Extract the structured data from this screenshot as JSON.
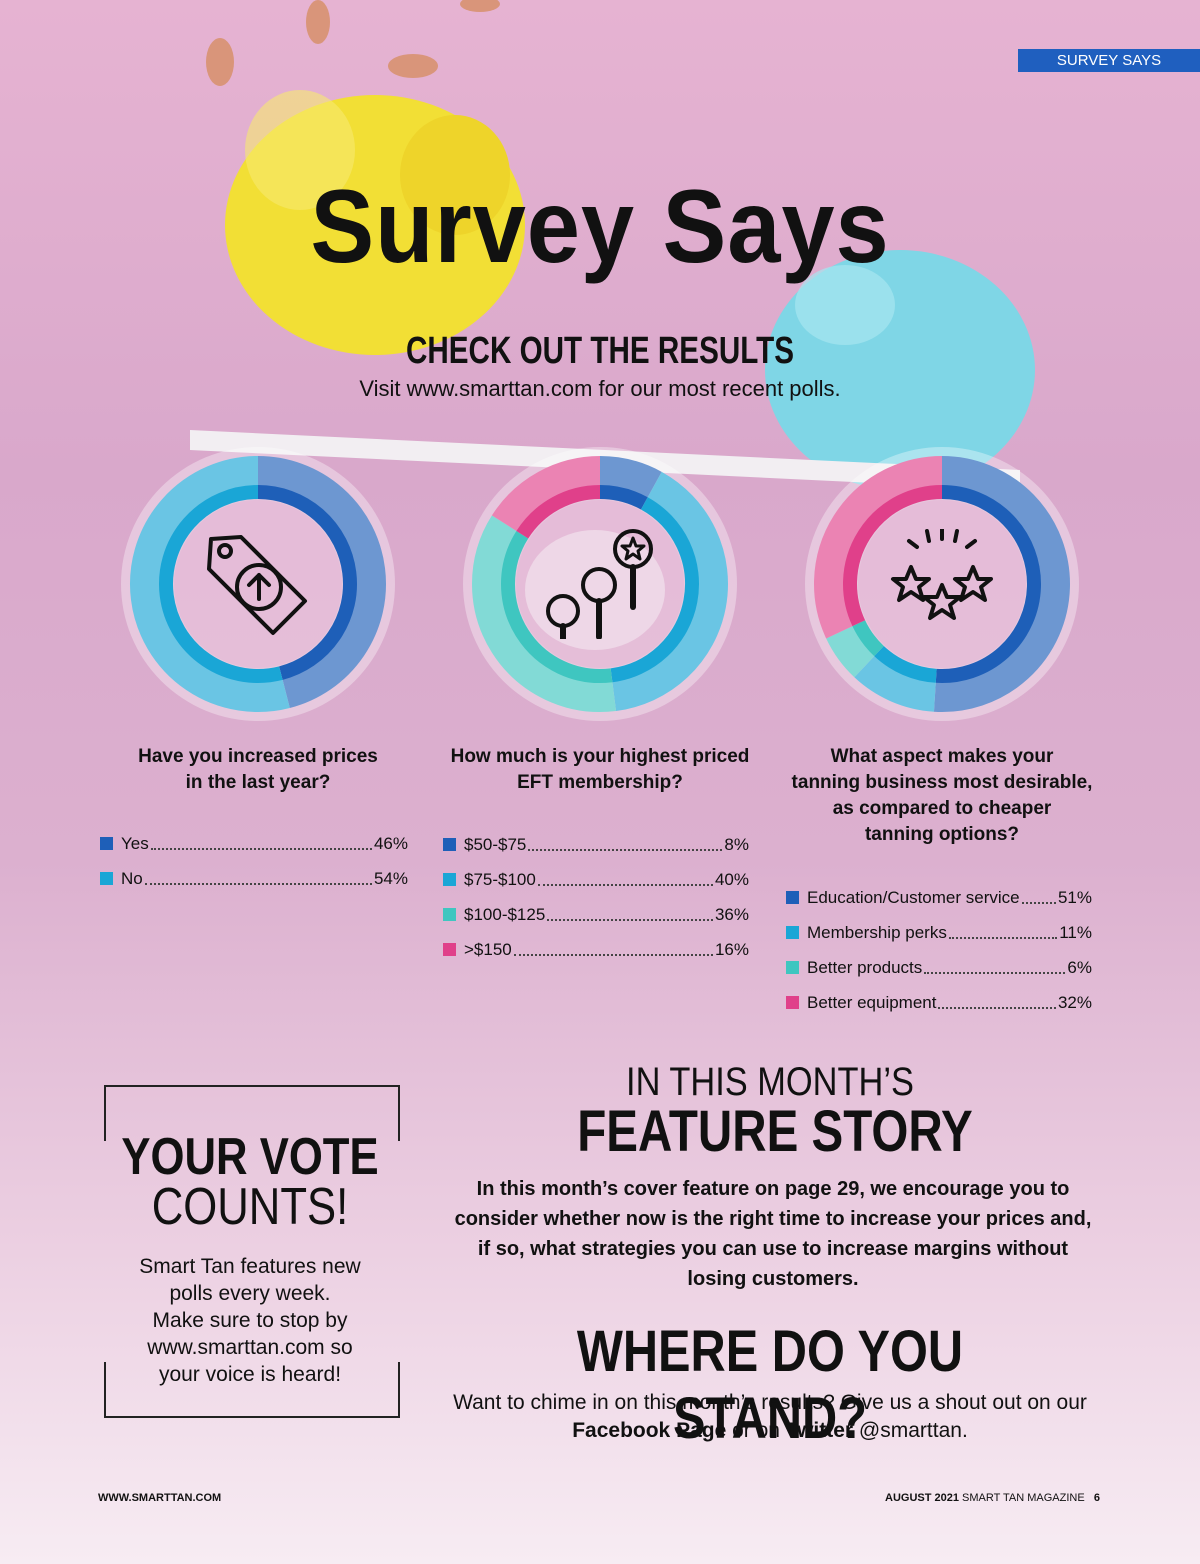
{
  "header": {
    "section_tag": "SURVEY SAYS"
  },
  "hero": {
    "title": "Survey Says",
    "subtitle": "CHECK OUT THE RESULTS",
    "subline": "Visit www.smarttan.com for our most recent polls."
  },
  "chart_data": [
    {
      "type": "pie",
      "title": "Have you increased prices in the last year?",
      "categories": [
        "Yes",
        "No"
      ],
      "values": [
        46,
        54
      ],
      "value_labels": [
        "46%",
        "54%"
      ],
      "colors": [
        "#1e5fb8",
        "#1aa6d6"
      ],
      "icon": "price-tag-up-arrow-icon"
    },
    {
      "type": "pie",
      "title": "How much is your highest priced EFT membership?",
      "categories": [
        "$50-$75",
        "$75-$100",
        "$100-$125",
        ">$150"
      ],
      "values": [
        8,
        40,
        36,
        16
      ],
      "value_labels": [
        "8%",
        "40%",
        "36%",
        "16%"
      ],
      "colors": [
        "#1e5fb8",
        "#1aa6d6",
        "#3fc6c0",
        "#e0408a"
      ],
      "icon": "price-levels-balloons-icon"
    },
    {
      "type": "pie",
      "title": "What aspect makes your tanning business most desirable, as compared to cheaper tanning options?",
      "categories": [
        "Education/Customer service",
        "Membership perks",
        "Better products",
        "Better equipment"
      ],
      "values": [
        51,
        11,
        6,
        32
      ],
      "value_labels": [
        "51%",
        "11%",
        "6%",
        "32%"
      ],
      "colors": [
        "#1e5fb8",
        "#1aa6d6",
        "#3fc6c0",
        "#e0408a"
      ],
      "icon": "three-stars-icon"
    }
  ],
  "charts_text": [
    {
      "q1": "Have you increased prices",
      "q2": "in the last year?",
      "q3": "",
      "q4": ""
    },
    {
      "q1": "How much is your highest priced",
      "q2": "EFT membership?",
      "q3": "",
      "q4": ""
    },
    {
      "q1": "What aspect makes your",
      "q2": "tanning business most desirable,",
      "q3": "as compared to cheaper",
      "q4": "tanning options?"
    }
  ],
  "vote": {
    "title_bold": "YOUR VOTE",
    "title_light": "COUNTS!",
    "text_lines": [
      "Smart Tan features new",
      "polls every week.",
      "Make sure to stop by",
      "www.smarttan.com so",
      "your voice is heard!"
    ]
  },
  "feature": {
    "kicker": "IN THIS MONTH’S",
    "title": "FEATURE STORY",
    "text": "In this month’s cover feature on page 29, we encourage you to consider whether now is the right time to increase your prices and, if so, what strategies you can use to increase margins without losing customers."
  },
  "stand": {
    "title": "WHERE DO YOU STAND?",
    "text_a": "Want to chime in on this month’s results? Give us a shout out on our ",
    "facebook": "Facebook Page",
    "text_b": " or on ",
    "twitter": "Twitter",
    "text_c": " @smarttan."
  },
  "footer": {
    "left": "WWW.SMARTTAN.COM",
    "right_bold": "AUGUST 2021",
    "right_text": "SMART TAN MAGAZINE",
    "page": "6"
  }
}
